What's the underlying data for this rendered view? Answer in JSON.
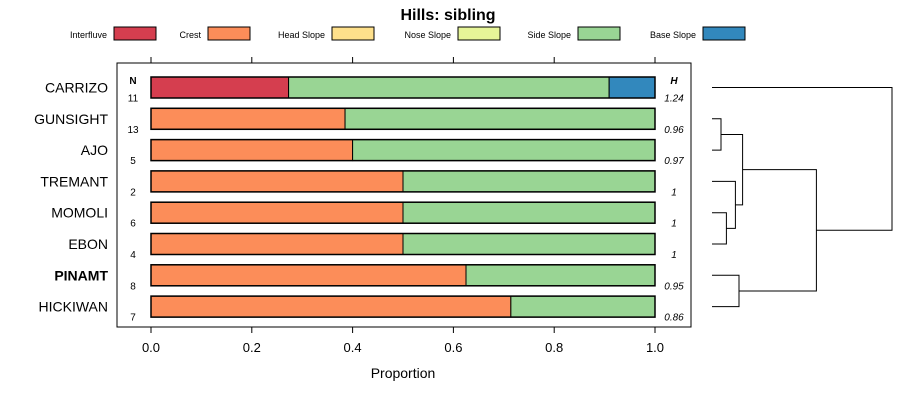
{
  "chart_data": {
    "type": "bar",
    "orientation": "horizontal",
    "stacked": true,
    "title": "Hills: sibling",
    "xlabel": "Proportion",
    "xlim": [
      0,
      1
    ],
    "xticks": [
      0.0,
      0.2,
      0.4,
      0.6,
      0.8,
      1.0
    ],
    "xtick_labels": [
      "0.0",
      "0.2",
      "0.4",
      "0.6",
      "0.8",
      "1.0"
    ],
    "n_header": "N",
    "h_header": "H",
    "legend": [
      {
        "name": "Interfluve",
        "color": "#d53e4f"
      },
      {
        "name": "Crest",
        "color": "#fc8d59"
      },
      {
        "name": "Head Slope",
        "color": "#fee08b"
      },
      {
        "name": "Nose Slope",
        "color": "#e6f598"
      },
      {
        "name": "Side Slope",
        "color": "#99d594"
      },
      {
        "name": "Base Slope",
        "color": "#3288bd"
      }
    ],
    "categories": [
      {
        "label": "CARRIZO",
        "bold": false,
        "n": "11",
        "h": "1.24",
        "values": [
          0.273,
          0,
          0,
          0,
          0.636,
          0.091
        ]
      },
      {
        "label": "GUNSIGHT",
        "bold": false,
        "n": "13",
        "h": "0.96",
        "values": [
          0,
          0.385,
          0,
          0,
          0.615,
          0
        ]
      },
      {
        "label": "AJO",
        "bold": false,
        "n": "5",
        "h": "0.97",
        "values": [
          0,
          0.4,
          0,
          0,
          0.6,
          0
        ]
      },
      {
        "label": "TREMANT",
        "bold": false,
        "n": "2",
        "h": "1",
        "values": [
          0,
          0.5,
          0,
          0,
          0.5,
          0
        ]
      },
      {
        "label": "MOMOLI",
        "bold": false,
        "n": "6",
        "h": "1",
        "values": [
          0,
          0.5,
          0,
          0,
          0.5,
          0
        ]
      },
      {
        "label": "EBON",
        "bold": false,
        "n": "4",
        "h": "1",
        "values": [
          0,
          0.5,
          0,
          0,
          0.5,
          0
        ]
      },
      {
        "label": "PINAMT",
        "bold": true,
        "n": "8",
        "h": "0.95",
        "values": [
          0,
          0.625,
          0,
          0,
          0.375,
          0
        ]
      },
      {
        "label": "HICKIWAN",
        "bold": false,
        "n": "7",
        "h": "0.86",
        "values": [
          0,
          0.714,
          0,
          0,
          0.286,
          0
        ]
      }
    ],
    "dendrogram": {
      "description": "hierarchical clustering of series",
      "merges": [
        {
          "left": "GUNSIGHT",
          "right": "AJO",
          "height": 0.05
        },
        {
          "left": "MOMOLI",
          "right": "EBON",
          "height": 0.08
        },
        {
          "left": "TREMANT",
          "right": "MOMOLI+EBON",
          "height": 0.13
        },
        {
          "left": "GUNSIGHT+AJO",
          "right": "TREMANT+MOMOLI+EBON",
          "height": 0.17
        },
        {
          "left": "PINAMT",
          "right": "HICKIWAN",
          "height": 0.15
        },
        {
          "left": "GUNSIGHT..EBON",
          "right": "PINAMT+HICKIWAN",
          "height": 0.58
        },
        {
          "left": "CARRIZO",
          "right": "rest",
          "height": 1.0
        }
      ]
    }
  }
}
